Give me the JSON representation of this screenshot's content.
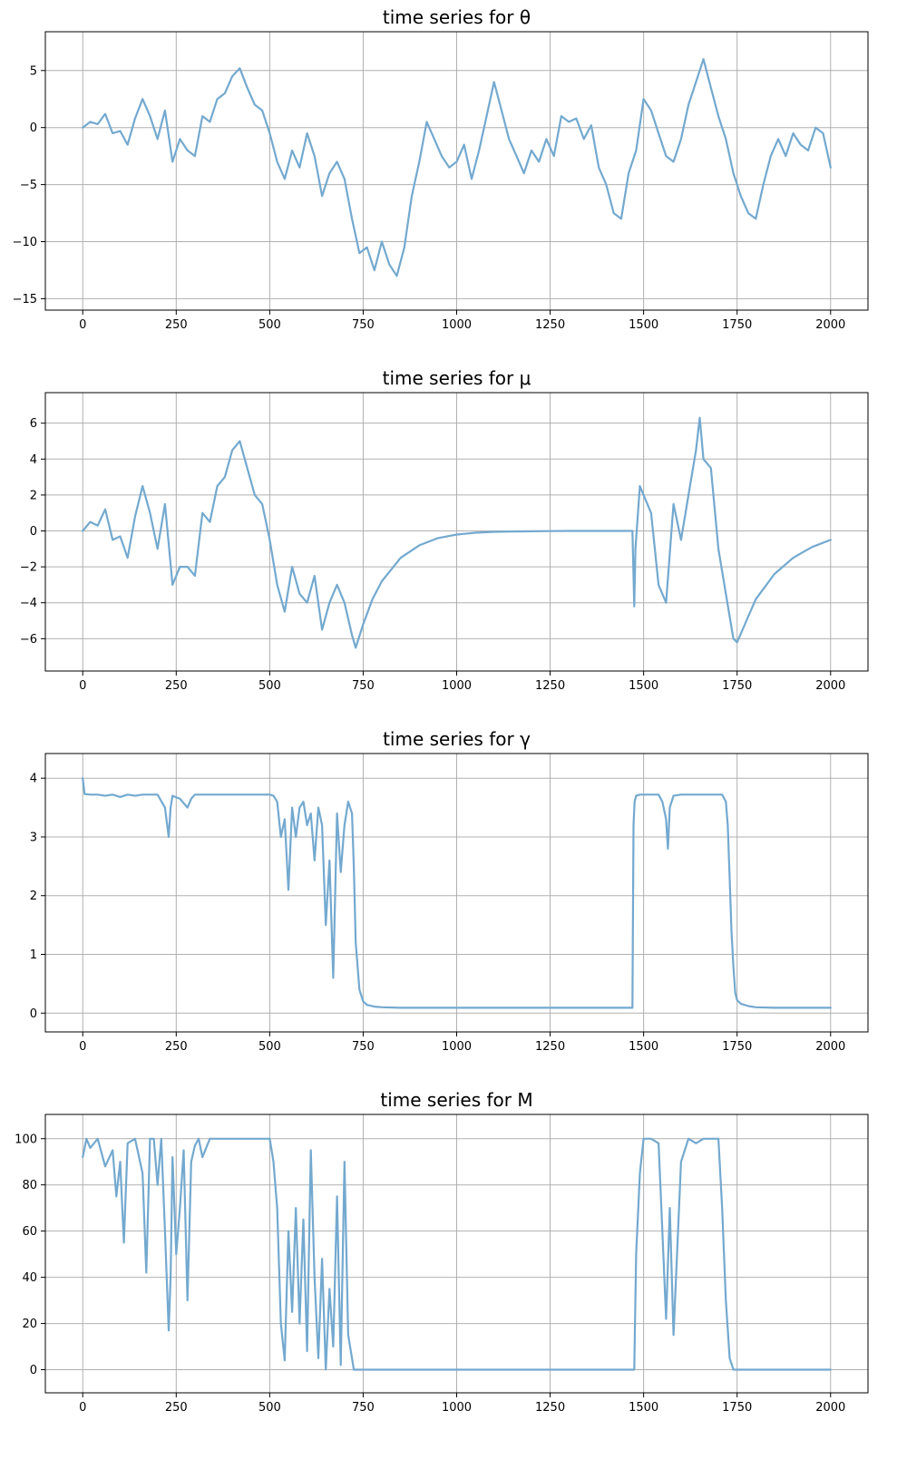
{
  "chart_data": [
    {
      "type": "line",
      "title": "time series for θ",
      "xlabel": "",
      "ylabel": "",
      "xlim": [
        -100,
        2100
      ],
      "ylim": [
        -16,
        8.4
      ],
      "xticks": [
        0,
        250,
        500,
        750,
        1000,
        1250,
        1500,
        1750,
        2000
      ],
      "yticks": [
        -15,
        -10,
        -5,
        0,
        5
      ],
      "ytick_labels": [
        "−15",
        "−10",
        "−5",
        "0",
        "5"
      ],
      "grid": true,
      "color": "#73a9cf",
      "series": [
        {
          "x": [
            0,
            20,
            40,
            60,
            80,
            100,
            120,
            140,
            160,
            180,
            200,
            220,
            240,
            260,
            280,
            300,
            320,
            340,
            360,
            380,
            400,
            420,
            440,
            460,
            480,
            500,
            520,
            540,
            560,
            580,
            600,
            620,
            640,
            660,
            680,
            700,
            720,
            740,
            760,
            780,
            800,
            820,
            840,
            860,
            880,
            900,
            920,
            940,
            960,
            980,
            1000,
            1020,
            1040,
            1060,
            1080,
            1100,
            1120,
            1140,
            1160,
            1180,
            1200,
            1220,
            1240,
            1260,
            1280,
            1300,
            1320,
            1340,
            1360,
            1380,
            1400,
            1420,
            1440,
            1460,
            1480,
            1500,
            1520,
            1540,
            1560,
            1580,
            1600,
            1620,
            1640,
            1660,
            1680,
            1700,
            1720,
            1740,
            1760,
            1780,
            1800,
            1820,
            1840,
            1860,
            1880,
            1900,
            1920,
            1940,
            1960,
            1980,
            2000
          ],
          "values": [
            0,
            0.5,
            0.3,
            1.2,
            -0.5,
            -0.3,
            -1.5,
            0.8,
            2.5,
            1.0,
            -1.0,
            1.5,
            -3.0,
            -1.0,
            -2.0,
            -2.5,
            1.0,
            0.5,
            2.5,
            3.0,
            4.5,
            5.2,
            3.5,
            2.0,
            1.5,
            -0.5,
            -3.0,
            -4.5,
            -2.0,
            -3.5,
            -0.5,
            -2.5,
            -6.0,
            -4.0,
            -3.0,
            -4.5,
            -8.0,
            -11.0,
            -10.5,
            -12.5,
            -10.0,
            -12.0,
            -13.0,
            -10.5,
            -6.0,
            -3.0,
            0.5,
            -1.0,
            -2.5,
            -3.5,
            -3.0,
            -1.5,
            -4.5,
            -2.0,
            1.0,
            4.0,
            1.5,
            -1.0,
            -2.5,
            -4.0,
            -2.0,
            -3.0,
            -1.0,
            -2.5,
            1.0,
            0.5,
            0.8,
            -1.0,
            0.2,
            -3.5,
            -5.0,
            -7.5,
            -8.0,
            -4.0,
            -2.0,
            2.5,
            1.5,
            -0.5,
            -2.5,
            -3.0,
            -1.0,
            2.0,
            4.0,
            6.0,
            3.5,
            1.0,
            -1.0,
            -4.0,
            -6.0,
            -7.5,
            -8.0,
            -5.0,
            -2.5,
            -1.0,
            -2.5,
            -0.5,
            -1.5,
            -2.0,
            0.0,
            -0.5,
            -3.5
          ]
        }
      ]
    },
    {
      "type": "line",
      "title": "time series for μ",
      "xlabel": "",
      "ylabel": "",
      "xlim": [
        -100,
        2100
      ],
      "ylim": [
        -7.8,
        7.7
      ],
      "xticks": [
        0,
        250,
        500,
        750,
        1000,
        1250,
        1500,
        1750,
        2000
      ],
      "yticks": [
        -6,
        -4,
        -2,
        0,
        2,
        4,
        6
      ],
      "ytick_labels": [
        "−6",
        "−4",
        "−2",
        "0",
        "2",
        "4",
        "6"
      ],
      "grid": true,
      "color": "#73a9cf",
      "series": [
        {
          "x": [
            0,
            20,
            40,
            60,
            80,
            100,
            120,
            140,
            160,
            180,
            200,
            220,
            240,
            260,
            280,
            300,
            320,
            340,
            360,
            380,
            400,
            420,
            440,
            460,
            480,
            500,
            520,
            540,
            560,
            580,
            600,
            620,
            640,
            660,
            680,
            700,
            720,
            730,
            750,
            775,
            800,
            850,
            900,
            950,
            1000,
            1050,
            1100,
            1150,
            1200,
            1250,
            1300,
            1350,
            1400,
            1450,
            1470,
            1475,
            1478,
            1490,
            1500,
            1520,
            1540,
            1560,
            1580,
            1600,
            1620,
            1640,
            1650,
            1660,
            1680,
            1700,
            1720,
            1740,
            1750,
            1775,
            1800,
            1850,
            1900,
            1950,
            2000
          ],
          "values": [
            0,
            0.5,
            0.3,
            1.2,
            -0.5,
            -0.3,
            -1.5,
            0.8,
            2.5,
            1.0,
            -1.0,
            1.5,
            -3.0,
            -2.0,
            -2.0,
            -2.5,
            1.0,
            0.5,
            2.5,
            3.0,
            4.5,
            5.0,
            3.5,
            2.0,
            1.5,
            -0.5,
            -3.0,
            -4.5,
            -2.0,
            -3.5,
            -4.0,
            -2.5,
            -5.5,
            -4.0,
            -3.0,
            -4.0,
            -5.8,
            -6.5,
            -5.2,
            -3.8,
            -2.8,
            -1.5,
            -0.8,
            -0.4,
            -0.2,
            -0.1,
            -0.05,
            -0.03,
            -0.02,
            -0.01,
            0.0,
            0.0,
            0.0,
            0.0,
            0.0,
            -4.2,
            -1.0,
            2.5,
            2.0,
            1.0,
            -3.0,
            -4.0,
            1.5,
            -0.5,
            2.0,
            4.5,
            6.3,
            4.0,
            3.5,
            -1.0,
            -3.5,
            -6.0,
            -6.2,
            -5.0,
            -3.8,
            -2.4,
            -1.5,
            -0.9,
            -0.5
          ]
        }
      ]
    },
    {
      "type": "line",
      "title": "time series for γ",
      "xlabel": "",
      "ylabel": "",
      "xlim": [
        -100,
        2100
      ],
      "ylim": [
        -0.32,
        4.42
      ],
      "xticks": [
        0,
        250,
        500,
        750,
        1000,
        1250,
        1500,
        1750,
        2000
      ],
      "yticks": [
        0,
        1,
        2,
        3,
        4
      ],
      "ytick_labels": [
        "0",
        "1",
        "2",
        "3",
        "4"
      ],
      "grid": true,
      "color": "#73a9cf",
      "series": [
        {
          "x": [
            0,
            5,
            20,
            40,
            60,
            80,
            100,
            120,
            140,
            160,
            180,
            200,
            220,
            230,
            235,
            240,
            260,
            280,
            290,
            300,
            320,
            340,
            360,
            380,
            400,
            420,
            440,
            460,
            480,
            500,
            510,
            520,
            530,
            540,
            550,
            560,
            570,
            580,
            590,
            600,
            610,
            620,
            630,
            640,
            650,
            660,
            670,
            680,
            690,
            700,
            710,
            720,
            725,
            730,
            740,
            750,
            760,
            780,
            800,
            850,
            900,
            1000,
            1100,
            1200,
            1300,
            1400,
            1470,
            1473,
            1476,
            1480,
            1490,
            1500,
            1520,
            1540,
            1550,
            1560,
            1565,
            1570,
            1580,
            1600,
            1620,
            1640,
            1660,
            1680,
            1700,
            1710,
            1720,
            1725,
            1730,
            1735,
            1740,
            1745,
            1750,
            1760,
            1780,
            1800,
            1850,
            1900,
            1950,
            2000
          ],
          "values": [
            4.0,
            3.73,
            3.72,
            3.72,
            3.7,
            3.72,
            3.68,
            3.72,
            3.7,
            3.72,
            3.72,
            3.72,
            3.5,
            3.0,
            3.5,
            3.7,
            3.65,
            3.5,
            3.65,
            3.72,
            3.72,
            3.72,
            3.72,
            3.72,
            3.72,
            3.72,
            3.72,
            3.72,
            3.72,
            3.72,
            3.7,
            3.6,
            3.0,
            3.3,
            2.1,
            3.5,
            3.0,
            3.5,
            3.6,
            3.2,
            3.4,
            2.6,
            3.5,
            3.2,
            1.5,
            2.6,
            0.6,
            3.4,
            2.4,
            3.2,
            3.6,
            3.4,
            2.5,
            1.2,
            0.4,
            0.2,
            0.14,
            0.11,
            0.1,
            0.09,
            0.09,
            0.09,
            0.09,
            0.09,
            0.09,
            0.09,
            0.09,
            3.2,
            3.6,
            3.7,
            3.72,
            3.72,
            3.72,
            3.72,
            3.6,
            3.3,
            2.8,
            3.5,
            3.7,
            3.72,
            3.72,
            3.72,
            3.72,
            3.72,
            3.72,
            3.72,
            3.6,
            3.2,
            2.3,
            1.4,
            0.8,
            0.35,
            0.22,
            0.16,
            0.12,
            0.1,
            0.09,
            0.09,
            0.09,
            0.09
          ]
        }
      ]
    },
    {
      "type": "line",
      "title": "time series for M",
      "xlabel": "",
      "ylabel": "",
      "xlim": [
        -100,
        2100
      ],
      "ylim": [
        -10,
        110.5
      ],
      "xticks": [
        0,
        250,
        500,
        750,
        1000,
        1250,
        1500,
        1750,
        2000
      ],
      "yticks": [
        0,
        20,
        40,
        60,
        80,
        100
      ],
      "ytick_labels": [
        "0",
        "20",
        "40",
        "60",
        "80",
        "100"
      ],
      "grid": true,
      "color": "#73a9cf",
      "series": [
        {
          "x": [
            0,
            10,
            20,
            40,
            60,
            80,
            90,
            100,
            110,
            120,
            140,
            160,
            170,
            180,
            190,
            200,
            210,
            220,
            230,
            235,
            240,
            250,
            260,
            270,
            280,
            290,
            300,
            310,
            320,
            340,
            360,
            380,
            400,
            420,
            440,
            460,
            480,
            500,
            510,
            520,
            530,
            540,
            550,
            560,
            570,
            580,
            590,
            600,
            610,
            620,
            630,
            640,
            650,
            660,
            670,
            680,
            690,
            700,
            710,
            720,
            725,
            730,
            800,
            900,
            1000,
            1100,
            1200,
            1300,
            1400,
            1470,
            1475,
            1480,
            1490,
            1500,
            1520,
            1540,
            1550,
            1560,
            1570,
            1580,
            1600,
            1620,
            1640,
            1660,
            1680,
            1700,
            1710,
            1720,
            1730,
            1740,
            1750,
            1760,
            1800,
            1900,
            2000
          ],
          "values": [
            92,
            100,
            96,
            100,
            88,
            95,
            75,
            90,
            55,
            98,
            100,
            85,
            42,
            100,
            100,
            80,
            100,
            60,
            17,
            40,
            92,
            50,
            70,
            95,
            30,
            90,
            97,
            100,
            92,
            100,
            100,
            100,
            100,
            100,
            100,
            100,
            100,
            100,
            90,
            70,
            20,
            4,
            60,
            25,
            70,
            20,
            65,
            8,
            95,
            40,
            5,
            48,
            0,
            35,
            10,
            75,
            2,
            90,
            15,
            5,
            0,
            0,
            0,
            0,
            0,
            0,
            0,
            0,
            0,
            0,
            0,
            50,
            85,
            100,
            100,
            98,
            60,
            22,
            70,
            15,
            90,
            100,
            98,
            100,
            100,
            100,
            70,
            30,
            5,
            0,
            0,
            0,
            0,
            0,
            0
          ]
        }
      ]
    }
  ]
}
